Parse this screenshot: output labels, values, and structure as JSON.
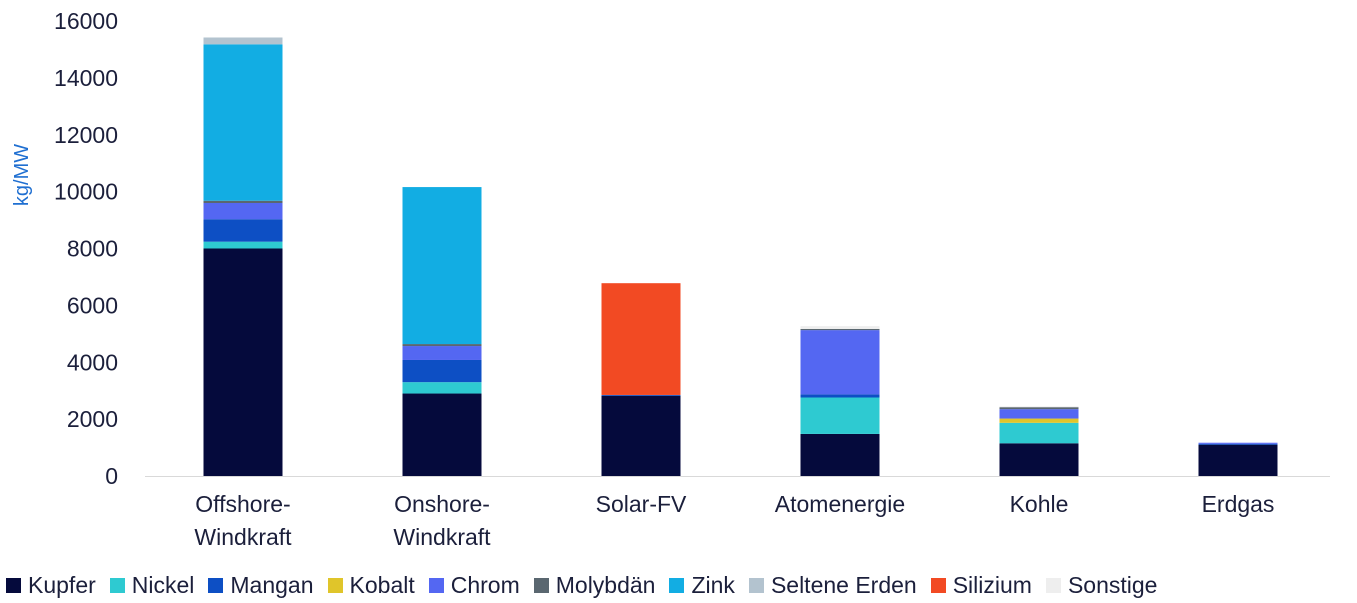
{
  "chart_data": {
    "type": "bar",
    "stacked": true,
    "title": "",
    "xlabel": "",
    "ylabel": "kg/MW",
    "ylim": [
      0,
      16000
    ],
    "yticks": [
      0,
      2000,
      4000,
      6000,
      8000,
      10000,
      12000,
      14000,
      16000
    ],
    "grid": false,
    "legend_position": "bottom",
    "categories": [
      [
        "Offshore-",
        "Windkraft"
      ],
      [
        "Onshore-",
        "Windkraft"
      ],
      [
        "Solar-FV"
      ],
      [
        "Atomenergie"
      ],
      [
        "Kohle"
      ],
      [
        "Erdgas"
      ]
    ],
    "series": [
      {
        "name": "Kupfer",
        "color": "#050a3c",
        "values": [
          8000,
          2900,
          2820,
          1480,
          1150,
          1100
        ]
      },
      {
        "name": "Nickel",
        "color": "#2ecad1",
        "values": [
          240,
          400,
          0,
          1280,
          720,
          0
        ]
      },
      {
        "name": "Mangan",
        "color": "#0d4fc4",
        "values": [
          790,
          780,
          30,
          110,
          0,
          30
        ]
      },
      {
        "name": "Kobalt",
        "color": "#e0c52a",
        "values": [
          0,
          0,
          0,
          0,
          150,
          0
        ]
      },
      {
        "name": "Chrom",
        "color": "#5467f2",
        "values": [
          570,
          490,
          0,
          2260,
          330,
          40
        ]
      },
      {
        "name": "Molybdän",
        "color": "#5a6770",
        "values": [
          80,
          70,
          0,
          40,
          70,
          0
        ]
      },
      {
        "name": "Zink",
        "color": "#12ade3",
        "values": [
          5500,
          5520,
          0,
          0,
          0,
          0
        ]
      },
      {
        "name": "Seltene Erden",
        "color": "#b3c3cf",
        "values": [
          240,
          0,
          0,
          0,
          0,
          0
        ]
      },
      {
        "name": "Silizium",
        "color": "#f24a23",
        "values": [
          0,
          0,
          3930,
          0,
          0,
          0
        ]
      },
      {
        "name": "Sonstige",
        "color": "#eeeeee",
        "values": [
          0,
          0,
          0,
          100,
          30,
          0
        ]
      }
    ]
  }
}
